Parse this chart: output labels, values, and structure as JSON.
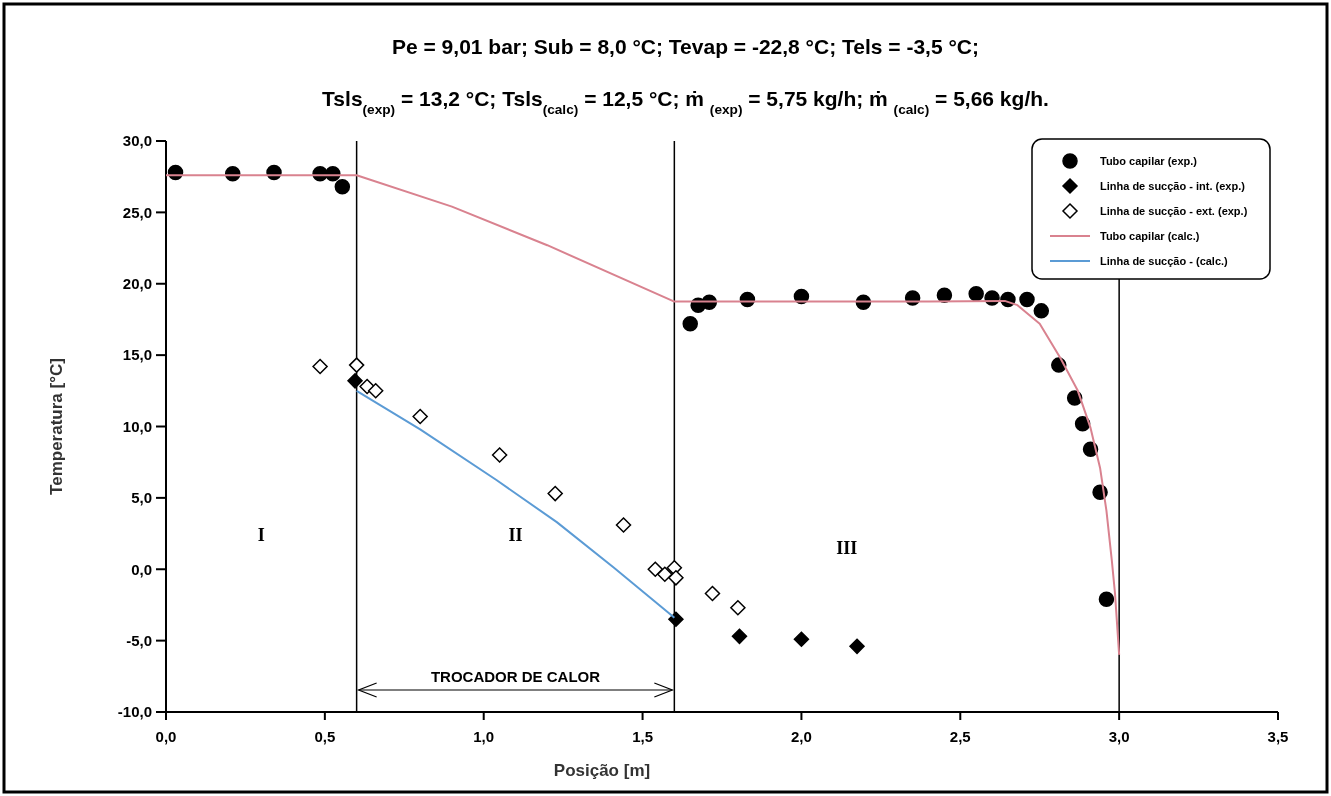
{
  "chart_data": {
    "type": "scatter",
    "title": "Pe = 9,01 bar; Sub = 8,0 °C; Tevap = -22,8 °C; Tels = -3,5 °C;",
    "subtitle": "Tsls$_{(exp)}$ = 13,2 °C; Tsls$_{(calc)}$ = 12,5 °C; ṁ $_{(exp)}$ = 5,75 kg/h; ṁ $_{(calc)}$ = 5,66 kg/h.",
    "xlabel": "Posição [m]",
    "ylabel": "Temperatura [°C]",
    "xlim": [
      0,
      3.5
    ],
    "ylim": [
      -10,
      30
    ],
    "xticks": [
      {
        "value": 0,
        "label": "0,0"
      },
      {
        "value": 0.5,
        "label": "0,5"
      },
      {
        "value": 1,
        "label": "1,0"
      },
      {
        "value": 1.5,
        "label": "1,5"
      },
      {
        "value": 2,
        "label": "2,0"
      },
      {
        "value": 2.5,
        "label": "2,5"
      },
      {
        "value": 3,
        "label": "3,0"
      },
      {
        "value": 3.5,
        "label": "3,5"
      }
    ],
    "yticks": [
      {
        "value": -10,
        "label": "-10,0"
      },
      {
        "value": -5,
        "label": "-5,0"
      },
      {
        "value": 0,
        "label": "0,0"
      },
      {
        "value": 5,
        "label": "5,0"
      },
      {
        "value": 10,
        "label": "10,0"
      },
      {
        "value": 15,
        "label": "15,0"
      },
      {
        "value": 20,
        "label": "20,0"
      },
      {
        "value": 25,
        "label": "25,0"
      },
      {
        "value": 30,
        "label": "30,0"
      }
    ],
    "legend": "top right",
    "grid": false,
    "series": [
      {
        "name": "Tubo capilar (exp.)",
        "marker": "circle",
        "color": "#000000",
        "x": [
          0.03,
          0.21,
          0.34,
          0.485,
          0.525,
          0.555,
          1.65,
          1.675,
          1.71,
          1.83,
          2.0,
          2.195,
          2.35,
          2.45,
          2.55,
          2.6,
          2.65,
          2.71,
          2.755,
          2.81,
          2.86,
          2.885,
          2.91,
          2.94,
          2.96
        ],
        "values": [
          27.8,
          27.7,
          27.8,
          27.7,
          27.7,
          26.8,
          17.2,
          18.5,
          18.7,
          18.9,
          19.1,
          18.7,
          19.0,
          19.2,
          19.3,
          19.0,
          18.9,
          18.9,
          18.1,
          14.3,
          12.0,
          10.2,
          8.4,
          5.4,
          -2.1
        ]
      },
      {
        "name": "Linha de sucção - int. (exp.)",
        "marker": "diamond",
        "color": "#000000",
        "x": [
          0.595,
          1.605,
          1.805,
          2.0,
          2.175
        ],
        "values": [
          13.2,
          -3.5,
          -4.7,
          -4.9,
          -5.4
        ]
      },
      {
        "name": "Linha de sucção - ext. (exp.)",
        "marker": "diamond",
        "color": "#ffffff",
        "x": [
          0.485,
          0.6,
          0.633,
          0.66,
          0.8,
          1.05,
          1.225,
          1.44,
          1.54,
          1.57,
          1.6,
          1.605,
          1.72,
          1.8
        ],
        "values": [
          14.2,
          14.3,
          12.8,
          12.5,
          10.7,
          8.0,
          5.3,
          3.1,
          0.0,
          -0.35,
          0.1,
          -0.6,
          -1.7,
          -2.7
        ]
      },
      {
        "name": "Tubo capilar (calc.)",
        "type": "line",
        "marker": "none",
        "color": "#d9828f",
        "x": [
          0,
          0.3,
          0.6,
          0.9,
          1.2,
          1.6,
          2.0,
          2.4,
          2.64,
          2.68,
          2.75,
          2.815,
          2.87,
          2.91,
          2.94,
          2.96,
          2.977,
          2.987,
          3.0
        ],
        "values": [
          27.6,
          27.6,
          27.6,
          25.4,
          22.7,
          18.75,
          18.75,
          18.75,
          18.8,
          18.5,
          17.2,
          14.8,
          12.5,
          9.9,
          7.1,
          4.1,
          0.6,
          -1.7,
          -6.0
        ]
      },
      {
        "name": "Linha de sucção - (calc.)",
        "type": "line",
        "marker": "none",
        "color": "#5b9bd5",
        "x": [
          0.6,
          0.8,
          1.04,
          1.23,
          1.41,
          1.59,
          1.6
        ],
        "values": [
          12.5,
          9.8,
          6.25,
          3.3,
          0.1,
          -3.2,
          -3.4
        ]
      }
    ],
    "ref_lines": [
      {
        "axis": "x",
        "value": 0.6,
        "color": "#000000"
      },
      {
        "axis": "x",
        "value": 1.6,
        "color": "#000000"
      },
      {
        "axis": "x",
        "value": 3.0,
        "color": "#000000"
      }
    ],
    "annotations": [
      "I",
      "II",
      "III",
      "TROCADOR DE CALOR"
    ]
  }
}
